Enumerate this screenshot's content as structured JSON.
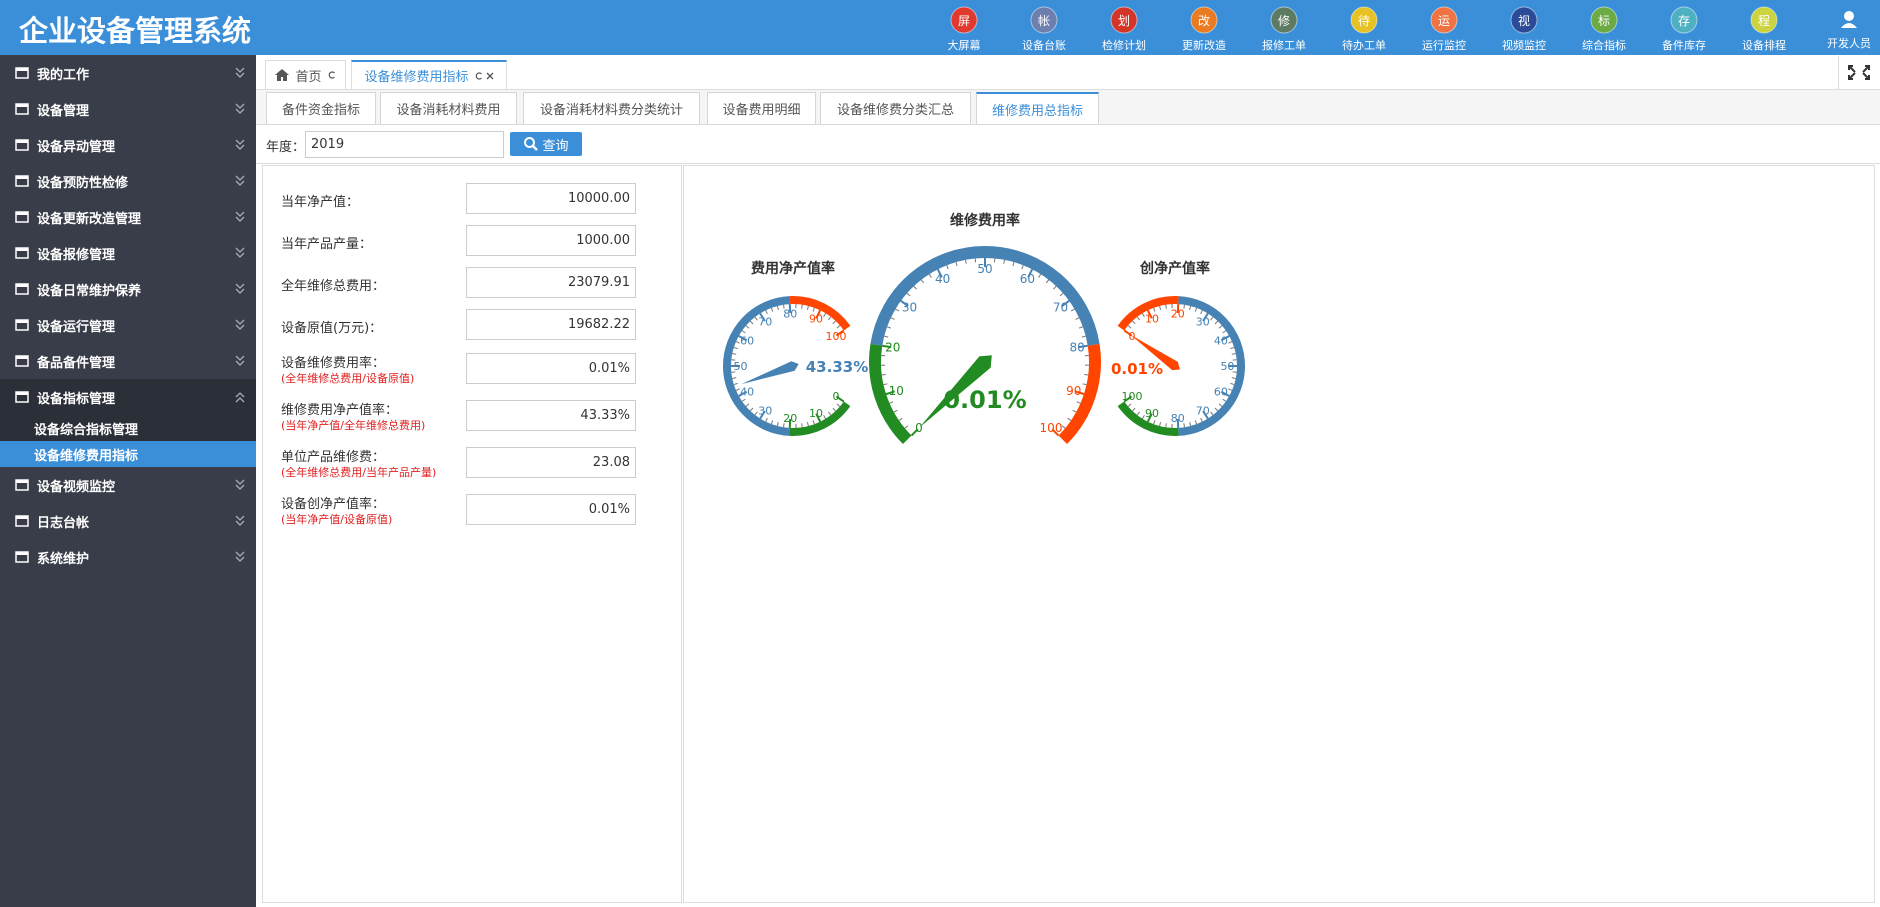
{
  "header": {
    "title": "企业设备管理系统",
    "nav_icons": [
      {
        "char": "屏",
        "label": "大屏幕",
        "color": "#e03a2e"
      },
      {
        "char": "帐",
        "label": "设备台账",
        "color": "#6c7fae"
      },
      {
        "char": "划",
        "label": "检修计划",
        "color": "#d33528"
      },
      {
        "char": "改",
        "label": "更新改造",
        "color": "#ea7b22"
      },
      {
        "char": "修",
        "label": "报修工单",
        "color": "#5d7b62"
      },
      {
        "char": "待",
        "label": "待办工单",
        "color": "#e8c125"
      },
      {
        "char": "运",
        "label": "运行监控",
        "color": "#f07344"
      },
      {
        "char": "视",
        "label": "视频监控",
        "color": "#2b4a98"
      },
      {
        "char": "标",
        "label": "综合指标",
        "color": "#6cab43"
      },
      {
        "char": "存",
        "label": "备件库存",
        "color": "#4fb0c2"
      },
      {
        "char": "程",
        "label": "设备排程",
        "color": "#cbd33f"
      }
    ],
    "user": "开发人员"
  },
  "sidebar": {
    "items": [
      {
        "label": "我的工作"
      },
      {
        "label": "设备管理"
      },
      {
        "label": "设备异动管理"
      },
      {
        "label": "设备预防性检修"
      },
      {
        "label": "设备更新改造管理"
      },
      {
        "label": "设备报修管理"
      },
      {
        "label": "设备日常维护保养"
      },
      {
        "label": "设备运行管理"
      },
      {
        "label": "备品备件管理"
      },
      {
        "label": "设备指标管理",
        "expanded": true,
        "children": [
          {
            "label": "设备综合指标管理"
          },
          {
            "label": "设备维修费用指标",
            "active": true
          }
        ]
      },
      {
        "label": "设备视频监控"
      },
      {
        "label": "日志台帐"
      },
      {
        "label": "系统维护"
      }
    ]
  },
  "tabs": [
    {
      "label": "首页"
    },
    {
      "label": "设备维修费用指标",
      "active": true
    }
  ],
  "sub_tabs": [
    {
      "label": "备件资金指标"
    },
    {
      "label": "设备消耗材料费用"
    },
    {
      "label": "设备消耗材料费分类统计"
    },
    {
      "label": "设备费用明细"
    },
    {
      "label": "设备维修费分类汇总"
    },
    {
      "label": "维修费用总指标",
      "active": true
    }
  ],
  "query": {
    "label": "年度：",
    "year": "2019",
    "button": "查询"
  },
  "form": {
    "rows": [
      {
        "label": "当年净产值：",
        "value": "10000.00"
      },
      {
        "label": "当年产品产量：",
        "value": "1000.00"
      },
      {
        "label": "全年维修总费用：",
        "value": "23079.91"
      },
      {
        "label": "设备原值(万元)：",
        "value": "19682.22"
      },
      {
        "label": "设备维修费用率：",
        "note": "(全年维修总费用/设备原值)",
        "value": "0.01%"
      },
      {
        "label": "维修费用净产值率：",
        "note": "(当年净产值/全年维修总费用)",
        "value": "43.33%"
      },
      {
        "label": "单位产品维修费：",
        "note": "(全年维修总费用/当年产品产量)",
        "value": "23.08"
      },
      {
        "label": "设备创净产值率：",
        "note": "(当年净产值/设备原值)",
        "value": "0.01%"
      }
    ]
  },
  "gauges": [
    {
      "title": "费用净产值率",
      "value": 43.33,
      "value_label": "43.33%",
      "min": 0,
      "max": 100,
      "ticks": [
        0,
        10,
        20,
        30,
        40,
        50,
        60,
        70,
        80,
        90,
        100
      ],
      "bands": [
        {
          "to": 20,
          "color": "#228b22"
        },
        {
          "to": 80,
          "color": "#4682b4"
        },
        {
          "to": 100,
          "color": "#ff4500"
        }
      ]
    },
    {
      "title": "维修费用率",
      "value": 0.01,
      "value_label": "0.01%",
      "min": 0,
      "max": 100,
      "ticks": [
        0,
        10,
        20,
        30,
        40,
        50,
        60,
        70,
        80,
        90,
        100
      ],
      "bands": [
        {
          "to": 20,
          "color": "#228b22"
        },
        {
          "to": 80,
          "color": "#4682b4"
        },
        {
          "to": 100,
          "color": "#ff4500"
        }
      ]
    },
    {
      "title": "创净产值率",
      "value": 0.01,
      "value_label": "0.01%",
      "min": 0,
      "max": 100,
      "ticks": [
        0,
        10,
        20,
        30,
        40,
        50,
        60,
        70,
        80,
        90,
        100
      ],
      "bands": [
        {
          "to": 20,
          "color": "#ff4500"
        },
        {
          "to": 80,
          "color": "#4682b4"
        },
        {
          "to": 100,
          "color": "#228b22"
        }
      ]
    }
  ]
}
